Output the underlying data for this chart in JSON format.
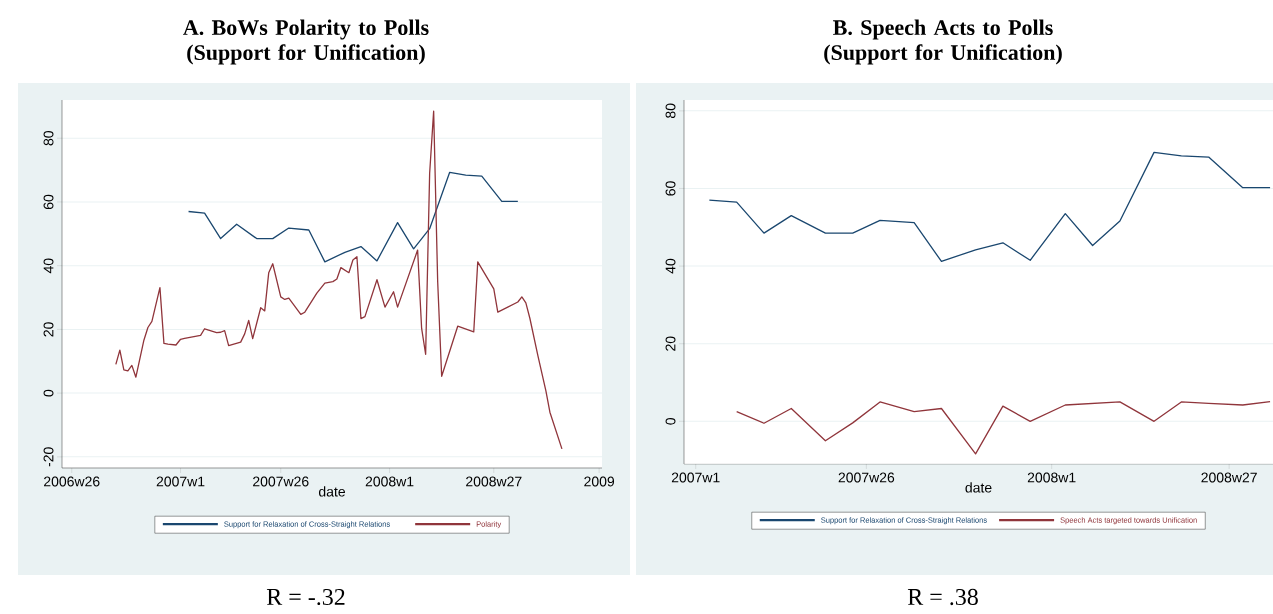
{
  "chart_data": [
    {
      "type": "line",
      "title": "A. BoWs Polarity to Polls (Support for Unification)",
      "xlabel": "date",
      "annotations": [
        "R = -.32"
      ],
      "grid": "y",
      "legend": "bottom",
      "xlim": [
        "2006-06-08",
        "2009-01-06"
      ],
      "ylim": [
        -23.5,
        92
      ],
      "xticks": [
        {
          "value": "2006-06-25",
          "label": "2006w26"
        },
        {
          "value": "2007-01-01",
          "label": "2007w1"
        },
        {
          "value": "2007-06-25",
          "label": "2007w26"
        },
        {
          "value": "2008-01-01",
          "label": "2008w1"
        },
        {
          "value": "2008-07-01",
          "label": "2008w27"
        },
        {
          "value": "2009-01-01",
          "label": "2009"
        }
      ],
      "yticks": [
        -20,
        0,
        20,
        40,
        60,
        80
      ],
      "series": [
        {
          "name": "Support for Relaxation of Cross-Straight Relations",
          "color": "#1a476f",
          "x": [
            "2007-01-15",
            "2007-02-12",
            "2007-03-12",
            "2007-04-09",
            "2007-05-14",
            "2007-06-11",
            "2007-07-09",
            "2007-08-13",
            "2007-09-10",
            "2007-10-15",
            "2007-11-12",
            "2007-12-10",
            "2008-01-15",
            "2008-02-12",
            "2008-03-11",
            "2008-04-15",
            "2008-05-13",
            "2008-06-10",
            "2008-07-15",
            "2008-08-12"
          ],
          "values": [
            57.0,
            56.5,
            48.5,
            53.0,
            48.5,
            48.5,
            51.8,
            51.2,
            41.2,
            44.2,
            46.0,
            41.5,
            53.5,
            45.3,
            51.6,
            69.3,
            68.4,
            68.1,
            60.2,
            60.2
          ]
        },
        {
          "name": "Polarity",
          "color": "#90353b",
          "x": [
            "2006-09-10",
            "2006-09-17",
            "2006-09-24",
            "2006-10-01",
            "2006-10-08",
            "2006-10-15",
            "2006-10-29",
            "2006-11-05",
            "2006-11-12",
            "2006-11-26",
            "2006-12-03",
            "2006-12-10",
            "2006-12-24",
            "2007-01-01",
            "2007-01-08",
            "2007-02-05",
            "2007-02-12",
            "2007-03-05",
            "2007-03-12",
            "2007-03-19",
            "2007-03-26",
            "2007-04-16",
            "2007-04-23",
            "2007-04-30",
            "2007-05-07",
            "2007-05-21",
            "2007-05-28",
            "2007-06-04",
            "2007-06-11",
            "2007-06-25",
            "2007-07-02",
            "2007-07-09",
            "2007-07-30",
            "2007-08-06",
            "2007-08-27",
            "2007-09-10",
            "2007-09-24",
            "2007-10-01",
            "2007-10-08",
            "2007-10-22",
            "2007-10-29",
            "2007-11-05",
            "2007-11-12",
            "2007-11-19",
            "2007-12-10",
            "2007-12-24",
            "2008-01-08",
            "2008-01-15",
            "2008-02-19",
            "2008-02-26",
            "2008-03-04",
            "2008-03-11",
            "2008-03-18",
            "2008-03-25",
            "2008-04-01",
            "2008-04-29",
            "2008-05-27",
            "2008-06-03",
            "2008-07-01",
            "2008-07-08",
            "2008-08-12",
            "2008-08-19",
            "2008-08-26",
            "2008-09-02",
            "2008-09-16",
            "2008-09-30",
            "2008-10-07",
            "2008-10-28"
          ],
          "values": [
            9.0,
            13.5,
            7.3,
            7.0,
            8.7,
            5.0,
            16.6,
            20.6,
            22.5,
            33.1,
            15.6,
            15.4,
            15.1,
            16.9,
            17.2,
            18.1,
            20.2,
            19.0,
            19.1,
            19.6,
            14.9,
            16.0,
            18.6,
            22.8,
            17.1,
            26.8,
            25.8,
            37.8,
            40.6,
            30.2,
            29.4,
            29.8,
            24.7,
            25.4,
            31.4,
            34.5,
            35.0,
            35.8,
            39.4,
            37.8,
            41.8,
            42.8,
            23.4,
            24.0,
            35.6,
            27.0,
            31.8,
            27.0,
            44.9,
            20.3,
            12.2,
            69.0,
            88.5,
            35.1,
            5.3,
            21.0,
            19.2,
            41.2,
            32.7,
            25.4,
            28.6,
            30.2,
            28.3,
            23.5,
            11.8,
            0.7,
            -6.0,
            -17.5
          ]
        }
      ]
    },
    {
      "type": "line",
      "title": "B. Speech Acts to Polls (Support for Unification)",
      "xlabel": "date",
      "annotations": [
        "R = .38"
      ],
      "grid": "y",
      "legend": "bottom",
      "xlim": [
        "2006-12-20",
        "2008-08-15"
      ],
      "ylim": [
        -11,
        82.8
      ],
      "xticks": [
        {
          "value": "2007-01-01",
          "label": "2007w1"
        },
        {
          "value": "2007-06-25",
          "label": "2007w26"
        },
        {
          "value": "2008-01-01",
          "label": "2008w1"
        },
        {
          "value": "2008-07-01",
          "label": "2008w27"
        }
      ],
      "yticks": [
        0,
        20,
        40,
        60,
        80
      ],
      "series": [
        {
          "name": "Support for Relaxation of Cross-Straight Relations",
          "color": "#1a476f",
          "x": [
            "2007-01-15",
            "2007-02-12",
            "2007-03-12",
            "2007-04-09",
            "2007-05-14",
            "2007-06-11",
            "2007-07-09",
            "2007-08-13",
            "2007-09-10",
            "2007-10-15",
            "2007-11-12",
            "2007-12-10",
            "2008-01-15",
            "2008-02-12",
            "2008-03-11",
            "2008-04-15",
            "2008-05-13",
            "2008-06-10",
            "2008-07-15",
            "2008-08-12"
          ],
          "values": [
            57.0,
            56.5,
            48.5,
            53.0,
            48.5,
            48.5,
            51.8,
            51.2,
            41.2,
            44.2,
            46.0,
            41.5,
            53.5,
            45.3,
            51.6,
            69.3,
            68.4,
            68.1,
            60.2,
            60.2
          ]
        },
        {
          "name": "Speech Acts targeted towards Unification",
          "color": "#90353b",
          "x": [
            "2007-02-12",
            "2007-03-12",
            "2007-04-09",
            "2007-05-14",
            "2007-06-11",
            "2007-07-09",
            "2007-08-13",
            "2007-09-10",
            "2007-10-15",
            "2007-11-12",
            "2007-12-10",
            "2008-01-15",
            "2008-03-11",
            "2008-04-15",
            "2008-05-13",
            "2008-06-10",
            "2008-07-15",
            "2008-08-12"
          ],
          "values": [
            2.5,
            -0.5,
            3.3,
            -5.0,
            -0.4,
            5.0,
            2.5,
            3.3,
            -8.4,
            3.9,
            0,
            4.2,
            5.0,
            0,
            5.0,
            4.6,
            4.2,
            5.1
          ]
        }
      ]
    }
  ]
}
